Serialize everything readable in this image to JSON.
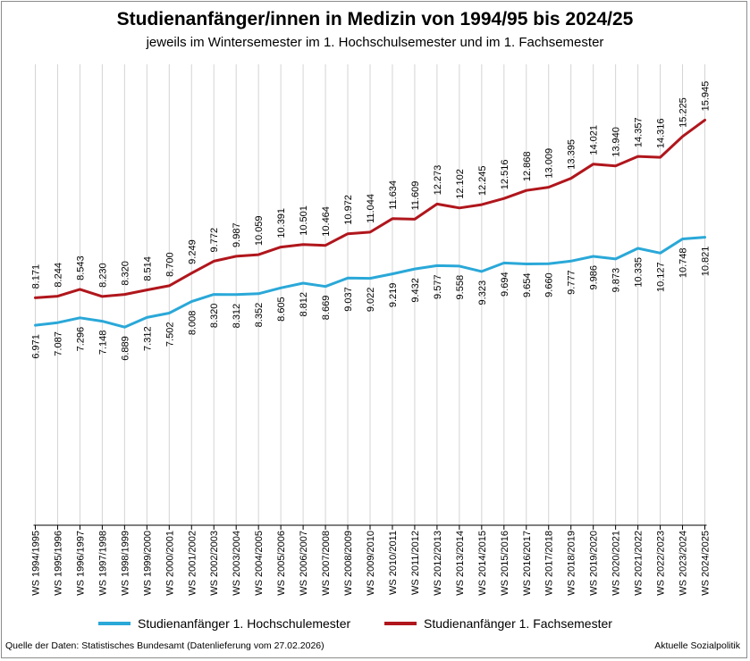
{
  "chart_data": {
    "type": "line",
    "title": "Studienanfänger/innen in Medizin von 1994/95 bis 2024/25",
    "subtitle": "jeweils im Wintersemester im 1. Hochschulsemester und im 1. Fachsemester",
    "categories": [
      "WS 1994/1995",
      "WS 1995/1996",
      "WS 1996/1997",
      "WS 1997/1998",
      "WS 1998/1999",
      "WS 1999/2000",
      "WS 2000/2001",
      "WS 2001/2002",
      "WS 2002/2003",
      "WS 2003/2004",
      "WS 2004/2005",
      "WS 2005/2006",
      "WS 2006/2007",
      "WS 2007/2008",
      "WS 2008/2009",
      "WS 2009/2010",
      "WS 2010/2011",
      "WS 2011/2012",
      "WS 2012/2013",
      "WS 2013/2014",
      "WS 2014/2015",
      "WS 2015/2016",
      "WS 2016/2017",
      "WS 2017/2018",
      "WS 2018/2019",
      "WS 2019/2020",
      "WS 2020/2021",
      "WS 2021/2022",
      "WS 2022/2023",
      "WS 2023/2024",
      "WS 2024/2025"
    ],
    "series": [
      {
        "name": "Studienanfänger 1. Hochschulemester",
        "color": "#2aa8d8",
        "values": [
          6971,
          7087,
          7296,
          7148,
          6889,
          7312,
          7502,
          8008,
          8320,
          8312,
          8352,
          8605,
          8812,
          8669,
          9037,
          9022,
          9219,
          9432,
          9577,
          9558,
          9323,
          9694,
          9654,
          9660,
          9777,
          9986,
          9873,
          10335,
          10127,
          10748,
          10821
        ],
        "labels": [
          "6.971",
          "7.087",
          "7.296",
          "7.148",
          "6.889",
          "7.312",
          "7.502",
          "8.008",
          "8.320",
          "8.312",
          "8.352",
          "8.605",
          "8.812",
          "8.669",
          "9.037",
          "9.022",
          "9.219",
          "9.432",
          "9.577",
          "9.558",
          "9.323",
          "9.694",
          "9.654",
          "9.660",
          "9.777",
          "9.986",
          "9.873",
          "10.335",
          "10.127",
          "10.748",
          "10.821"
        ]
      },
      {
        "name": "Studienanfänger 1. Fachsemester",
        "color": "#b0161c",
        "values": [
          8171,
          8244,
          8543,
          8230,
          8320,
          8514,
          8700,
          9249,
          9772,
          9987,
          10059,
          10391,
          10501,
          10464,
          10972,
          11044,
          11634,
          11609,
          12273,
          12102,
          12245,
          12516,
          12868,
          13009,
          13395,
          14021,
          13940,
          14357,
          14316,
          15225,
          15945
        ],
        "labels": [
          "8.171",
          "8.244",
          "8.543",
          "8.230",
          "8.320",
          "8.514",
          "8.700",
          "9.249",
          "9.772",
          "9.987",
          "10.059",
          "10.391",
          "10.501",
          "10.464",
          "10.972",
          "11.044",
          "11.634",
          "11.609",
          "12.273",
          "12.102",
          "12.245",
          "12.516",
          "12.868",
          "13.009",
          "13.395",
          "14.021",
          "13.940",
          "14.357",
          "14.316",
          "15.225",
          "15.945"
        ]
      }
    ],
    "xlabel": "",
    "ylabel": "",
    "ylim": [
      0,
      18000
    ],
    "grid": "vertical",
    "legend": "bottom"
  },
  "footer": {
    "source": "Quelle der Daten: Statistisches Bundesamt (Datenlieferung vom 27.02.2026)",
    "credit": "Aktuelle Sozialpolitik"
  }
}
